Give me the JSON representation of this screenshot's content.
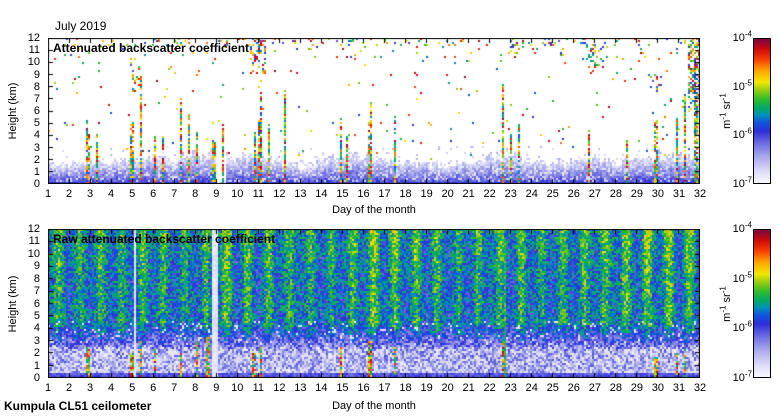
{
  "figure": {
    "title": "July 2019",
    "footer": "Kumpula CL51 ceilometer",
    "background": "#ffffff",
    "text_color": "#000000"
  },
  "axis": {
    "xlabel": "Day of the month",
    "ylabel": "Height (km)",
    "x_ticks": [
      "1",
      "2",
      "3",
      "4",
      "5",
      "6",
      "7",
      "8",
      "9",
      "10",
      "11",
      "12",
      "13",
      "14",
      "15",
      "16",
      "17",
      "18",
      "19",
      "20",
      "21",
      "22",
      "23",
      "24",
      "25",
      "26",
      "27",
      "28",
      "29",
      "30",
      "31",
      "32"
    ],
    "y_ticks": [
      "0",
      "1",
      "2",
      "3",
      "4",
      "5",
      "6",
      "7",
      "8",
      "9",
      "10",
      "11",
      "12"
    ]
  },
  "colorbar": {
    "ticks": [
      {
        "base": "10",
        "exp": "-4"
      },
      {
        "base": "10",
        "exp": "-5"
      },
      {
        "base": "10",
        "exp": "-6"
      },
      {
        "base": "10",
        "exp": "-7"
      }
    ],
    "unit_parts": [
      {
        "t": "m"
      },
      {
        "sup": "-1"
      },
      {
        "t": " sr"
      },
      {
        "sup": "-1"
      }
    ],
    "scale": "log",
    "range_m-1sr-1": [
      "1e-7",
      "1e-4"
    ]
  },
  "colormap_stops": [
    [
      0.0,
      "#f8f8ff"
    ],
    [
      0.08,
      "#dcdcf8"
    ],
    [
      0.18,
      "#aaaaec"
    ],
    [
      0.28,
      "#6a6ae0"
    ],
    [
      0.36,
      "#2e2ed8"
    ],
    [
      0.42,
      "#1155dd"
    ],
    [
      0.47,
      "#0090bb"
    ],
    [
      0.52,
      "#00aa66"
    ],
    [
      0.58,
      "#2ebb2e"
    ],
    [
      0.64,
      "#8ecc12"
    ],
    [
      0.7,
      "#f0e800"
    ],
    [
      0.78,
      "#ffa500"
    ],
    [
      0.86,
      "#f53c00"
    ],
    [
      0.93,
      "#cc0a0a"
    ],
    [
      1.0,
      "#7a0540"
    ]
  ],
  "chart_data": [
    {
      "type": "heatmap",
      "title": "Attenuated backscatter coefficient",
      "xlabel": "Day of the month",
      "ylabel": "Height (km)",
      "x_range": [
        1,
        32
      ],
      "y_range_km": [
        0,
        12
      ],
      "color_min": "1e-7",
      "color_max": "1e-4",
      "features": {
        "background": "#ffffff",
        "boundary_layer_km": [
          1.6,
          1.4,
          1.8,
          1.5,
          2.0,
          2.2,
          1.8,
          2.3,
          2.4,
          1.9,
          2.1,
          1.7,
          1.4,
          1.8,
          2.0,
          2.2,
          1.8,
          1.6,
          1.5,
          1.4,
          1.6,
          2.0,
          2.2,
          1.6,
          1.5,
          1.7,
          1.9,
          1.8,
          2.0,
          2.2,
          2.0
        ],
        "events": [
          [
            2.9,
            4.5,
            0.12
          ],
          [
            3.3,
            3.5,
            0.1
          ],
          [
            5.0,
            5.0,
            0.12
          ],
          [
            5.4,
            7.5,
            0.1
          ],
          [
            6.1,
            5.5,
            0.14
          ],
          [
            6.5,
            4.0,
            0.1
          ],
          [
            7.3,
            7.5,
            0.12
          ],
          [
            7.7,
            6.0,
            0.16
          ],
          [
            8.1,
            5.5,
            0.14
          ],
          [
            8.9,
            4.0,
            0.12
          ],
          [
            9.3,
            6.5,
            0.1
          ],
          [
            10.8,
            4.5,
            0.1
          ],
          [
            11.1,
            7.0,
            0.14
          ],
          [
            11.5,
            5.0,
            0.1
          ],
          [
            12.3,
            6.0,
            0.12
          ],
          [
            14.9,
            5.5,
            0.12
          ],
          [
            15.2,
            4.0,
            0.1
          ],
          [
            16.3,
            6.0,
            0.12
          ],
          [
            17.5,
            6.5,
            0.14
          ],
          [
            22.6,
            7.0,
            0.1
          ],
          [
            23.0,
            5.0,
            0.12
          ],
          [
            23.4,
            4.0,
            0.1
          ],
          [
            26.7,
            3.5,
            0.08
          ],
          [
            28.5,
            4.5,
            0.1
          ],
          [
            29.9,
            5.5,
            0.12
          ],
          [
            30.9,
            4.5,
            0.1
          ],
          [
            31.3,
            6.5,
            0.12
          ],
          [
            31.8,
            8.0,
            0.14
          ]
        ],
        "speckle_clusters": [
          [
            5.2,
            0.5,
            7.5,
            9.5,
            0.22
          ],
          [
            11.0,
            0.8,
            9.0,
            12,
            0.3
          ],
          [
            23.3,
            0.6,
            10.5,
            12,
            0.25
          ],
          [
            27.0,
            0.9,
            9.5,
            11.5,
            0.3
          ],
          [
            29.9,
            0.5,
            7.5,
            9.0,
            0.2
          ],
          [
            31.8,
            0.8,
            6.0,
            12,
            0.45
          ]
        ],
        "clear_gaps": [
          [
            9.25,
            0.45
          ]
        ],
        "seed": 7
      }
    },
    {
      "type": "heatmap",
      "title": "Raw attenuated backscatter coefficient",
      "xlabel": "Day of the month",
      "ylabel": "Height (km)",
      "x_range": [
        1,
        32
      ],
      "y_range_km": [
        0,
        12
      ],
      "color_min": "1e-7",
      "color_max": "1e-4",
      "features": {
        "solar_band_strength_by_day": [
          0.5,
          0.35,
          0.45,
          0.3,
          0.5,
          0.55,
          0.45,
          0.6,
          0.8,
          0.75,
          0.5,
          0.4,
          0.45,
          0.5,
          0.55,
          0.8,
          0.7,
          0.55,
          0.6,
          0.5,
          0.45,
          0.5,
          0.55,
          0.45,
          0.5,
          0.55,
          0.6,
          0.75,
          0.8,
          0.85,
          0.8
        ],
        "gaps": [
          [
            2.05,
            0.06
          ],
          [
            5.15,
            0.08
          ],
          [
            8.95,
            0.35
          ]
        ],
        "full_height_streak_day": 22.7,
        "ground_streaks": [
          [
            2.9,
            2.5
          ],
          [
            5.0,
            2.0
          ],
          [
            5.4,
            3.0
          ],
          [
            6.1,
            2.5
          ],
          [
            7.3,
            2.0
          ],
          [
            8.1,
            3.0
          ],
          [
            8.6,
            3.4
          ],
          [
            10.8,
            2.0
          ],
          [
            11.1,
            2.5
          ],
          [
            14.9,
            2.5
          ],
          [
            16.3,
            3.0
          ],
          [
            17.5,
            2.5
          ],
          [
            22.6,
            3.2
          ],
          [
            29.9,
            1.8
          ],
          [
            30.9,
            2.0
          ],
          [
            31.3,
            2.5
          ]
        ],
        "seed": 11
      }
    }
  ]
}
